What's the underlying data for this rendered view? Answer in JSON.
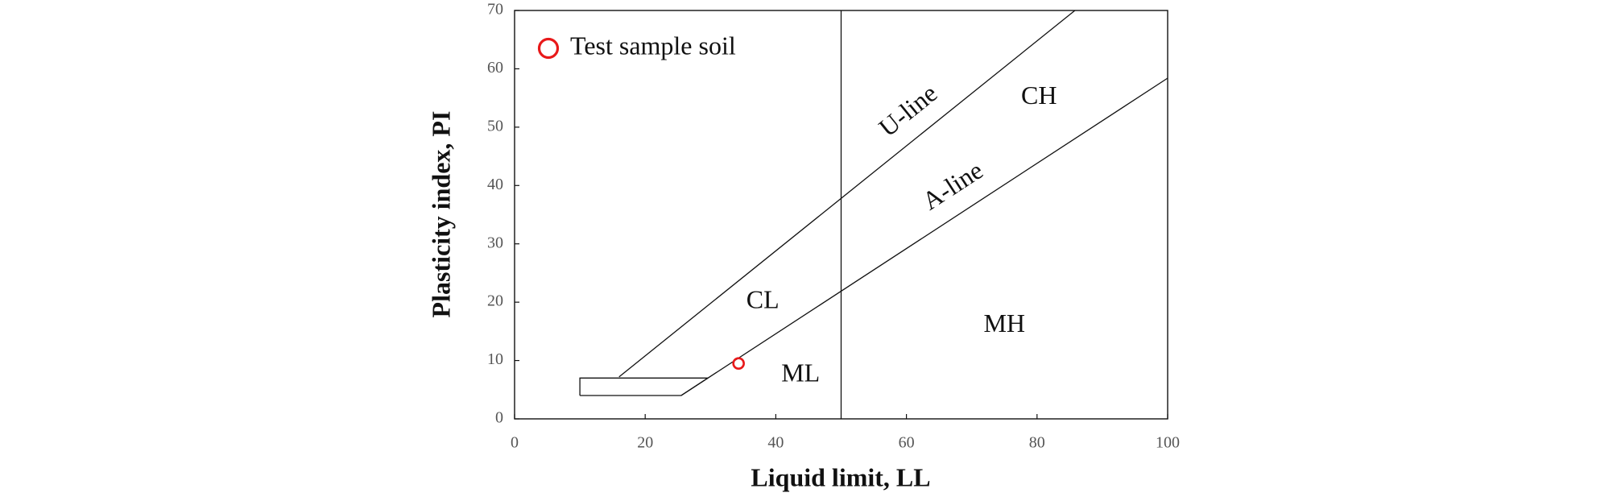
{
  "chart_data": {
    "type": "scatter",
    "x_label": "Liquid limit, LL",
    "y_label": "Plasticity index, PI",
    "xlim": [
      0,
      100
    ],
    "xticks": [
      0,
      20,
      40,
      60,
      80,
      100
    ],
    "ylim": [
      0,
      70
    ],
    "yticks": [
      0,
      10,
      20,
      30,
      40,
      50,
      60,
      70
    ],
    "legend": "upper left",
    "series": [
      {
        "name": "Test sample soil",
        "color": "#e8191a",
        "x": [
          34.3
        ],
        "values": [
          9.5
        ]
      }
    ],
    "reference_lines": [
      {
        "name": "U-line",
        "x": [
          16,
          85.8
        ],
        "y": [
          7.2,
          70
        ]
      },
      {
        "name": "A-line",
        "x": [
          25.5,
          100
        ],
        "y": [
          4,
          58.4
        ]
      },
      {
        "x": [
          50,
          50
        ],
        "y": [
          0,
          70
        ]
      },
      {
        "x": [
          10,
          25.5,
          29.6,
          10,
          10
        ],
        "y": [
          4,
          4,
          7,
          7,
          4
        ]
      }
    ],
    "annotations": [
      "CL",
      "ML",
      "CH",
      "MH"
    ]
  }
}
